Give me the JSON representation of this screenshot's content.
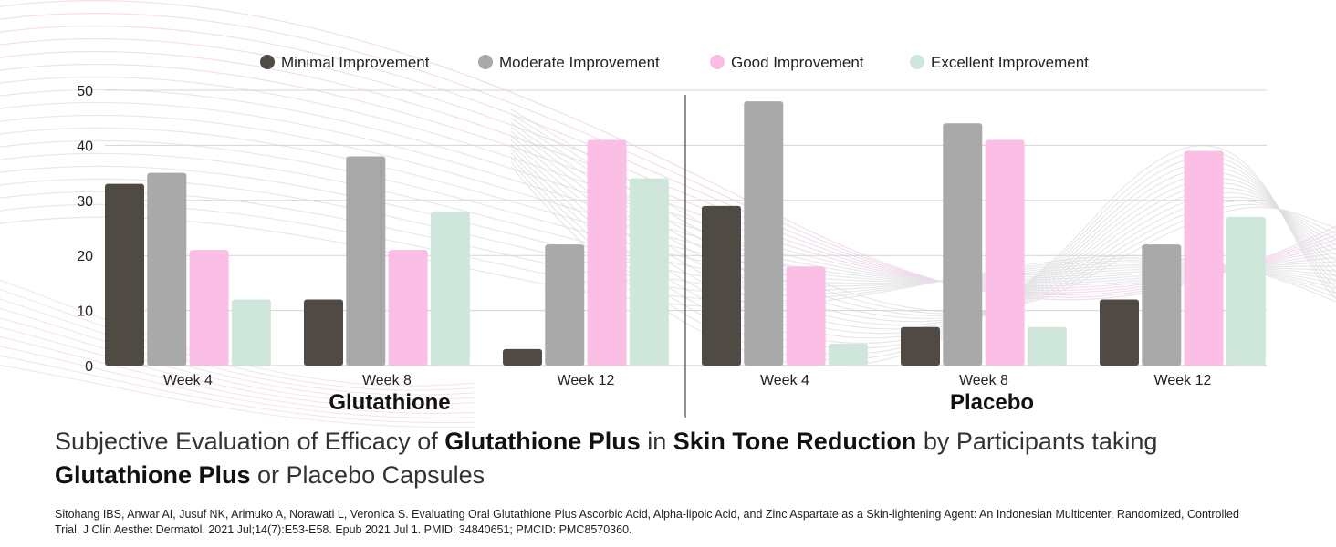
{
  "chart_data": {
    "type": "bar",
    "legend": [
      "Minimal Improvement",
      "Moderate Improvement",
      "Good Improvement",
      "Excellent Improvement"
    ],
    "legend_position": "top",
    "colors": [
      "#4f4a44",
      "#a9a9a9",
      "#fbbfe6",
      "#cfe7da"
    ],
    "ylim": [
      0,
      50
    ],
    "yticks": [
      0,
      10,
      20,
      30,
      40,
      50
    ],
    "grid": true,
    "groups": [
      {
        "name": "Glutathione",
        "categories": [
          "Week 4",
          "Week 8",
          "Week 12"
        ],
        "series": [
          {
            "name": "Minimal Improvement",
            "values": [
              33,
              12,
              3
            ]
          },
          {
            "name": "Moderate Improvement",
            "values": [
              35,
              38,
              22
            ]
          },
          {
            "name": "Good Improvement",
            "values": [
              21,
              21,
              41
            ]
          },
          {
            "name": "Excellent Improvement",
            "values": [
              12,
              28,
              34
            ]
          }
        ]
      },
      {
        "name": "Placebo",
        "categories": [
          "Week 4",
          "Week 8",
          "Week 12"
        ],
        "series": [
          {
            "name": "Minimal Improvement",
            "values": [
              29,
              7,
              12
            ]
          },
          {
            "name": "Moderate Improvement",
            "values": [
              48,
              44,
              22
            ]
          },
          {
            "name": "Good Improvement",
            "values": [
              18,
              41,
              39
            ]
          },
          {
            "name": "Excellent Improvement",
            "values": [
              4,
              7,
              27
            ]
          }
        ]
      }
    ]
  },
  "caption": {
    "parts": [
      {
        "text": "Subjective Evaluation of Efficacy of ",
        "bold": false
      },
      {
        "text": "Glutathione Plus",
        "bold": true
      },
      {
        "text": " in ",
        "bold": false
      },
      {
        "text": "Skin Tone Reduction",
        "bold": true
      },
      {
        "text": " by Participants taking ",
        "bold": false
      },
      {
        "text": "Glutathione Plus",
        "bold": true
      },
      {
        "text": " or Placebo Capsules",
        "bold": false
      }
    ]
  },
  "citation": "Sitohang IBS, Anwar AI, Jusuf NK, Arimuko A, Norawati L, Veronica S. Evaluating Oral Glutathione Plus Ascorbic Acid, Alpha-lipoic Acid, and Zinc Aspartate as a Skin-lightening Agent: An Indonesian Multicenter, Randomized, Controlled Trial. J Clin Aesthet Dermatol. 2021 Jul;14(7):E53-E58. Epub 2021 Jul 1. PMID: 34840651; PMCID: PMC8570360."
}
